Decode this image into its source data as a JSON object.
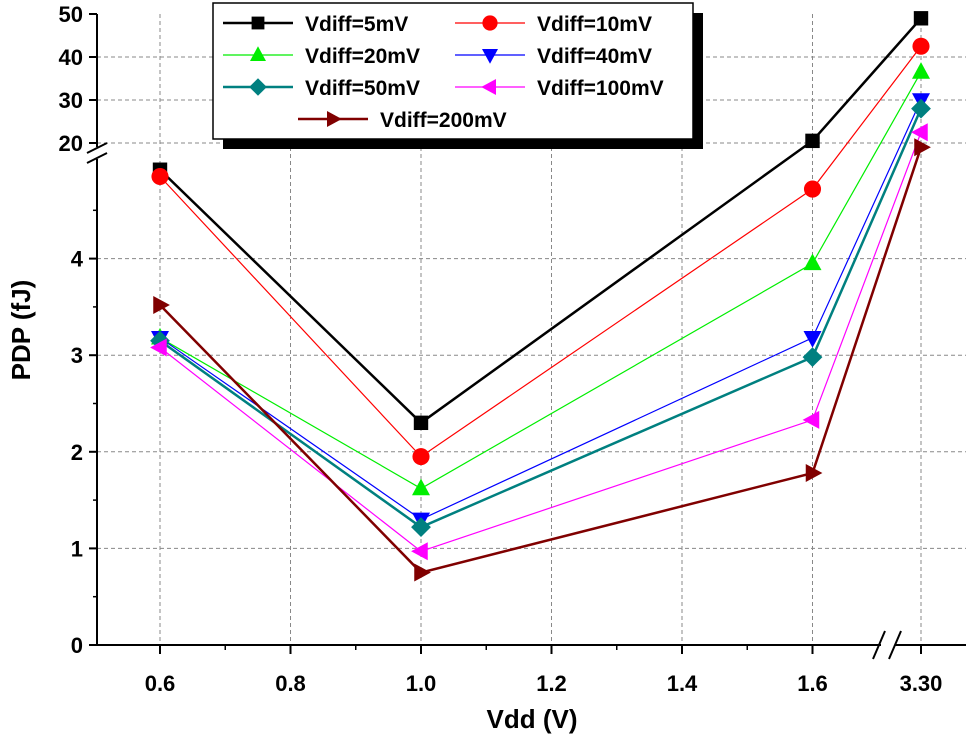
{
  "chart_data": {
    "type": "line",
    "title": "",
    "xlabel": "Vdd (V)",
    "ylabel": "PDP (fJ)",
    "x": [
      0.6,
      1.0,
      1.6,
      3.3
    ],
    "x_tick_labels": [
      "0.6",
      "0.8",
      "1.0",
      "1.2",
      "1.4",
      "1.6",
      "3.30"
    ],
    "x_tick_values": [
      0.6,
      0.8,
      1.0,
      1.2,
      1.4,
      1.6,
      3.3
    ],
    "x_range": [
      0.5,
      3.37
    ],
    "x_break_between": [
      1.6,
      3.3
    ],
    "y_lower_range": [
      0,
      5
    ],
    "y_upper_range": [
      20,
      50
    ],
    "y_lower_ticks": [
      0,
      1,
      2,
      3,
      4
    ],
    "y_lower_tick_labels": [
      "0",
      "1",
      "2",
      "3",
      "4"
    ],
    "y_upper_ticks": [
      20,
      30,
      40,
      50
    ],
    "y_upper_tick_labels": [
      "20",
      "30",
      "40",
      "50"
    ],
    "y_break": "between 5 and 20",
    "grid": true,
    "legend_position": "top-center",
    "series": [
      {
        "name": "Vdiff=5mV",
        "color": "#000000",
        "marker": "square",
        "values": [
          4.92,
          2.3,
          20.5,
          49
        ]
      },
      {
        "name": "Vdiff=10mV",
        "color": "#ff0000",
        "marker": "circle",
        "values": [
          4.85,
          1.95,
          4.72,
          42.5
        ]
      },
      {
        "name": "Vdiff=20mV",
        "color": "#00ee00",
        "marker": "triangle-up",
        "values": [
          3.18,
          1.62,
          3.95,
          36.5
        ]
      },
      {
        "name": "Vdiff=40mV",
        "color": "#0000ff",
        "marker": "triangle-down",
        "values": [
          3.18,
          1.3,
          3.18,
          30
        ]
      },
      {
        "name": "Vdiff=50mV",
        "color": "#008080",
        "marker": "diamond",
        "values": [
          3.15,
          1.22,
          2.98,
          28
        ]
      },
      {
        "name": "Vdiff=100mV",
        "color": "#ff00ff",
        "marker": "triangle-left",
        "values": [
          3.08,
          0.97,
          2.33,
          22.5
        ]
      },
      {
        "name": "Vdiff=200mV",
        "color": "#800000",
        "marker": "triangle-right",
        "values": [
          3.52,
          0.75,
          1.78,
          19
        ]
      }
    ]
  }
}
